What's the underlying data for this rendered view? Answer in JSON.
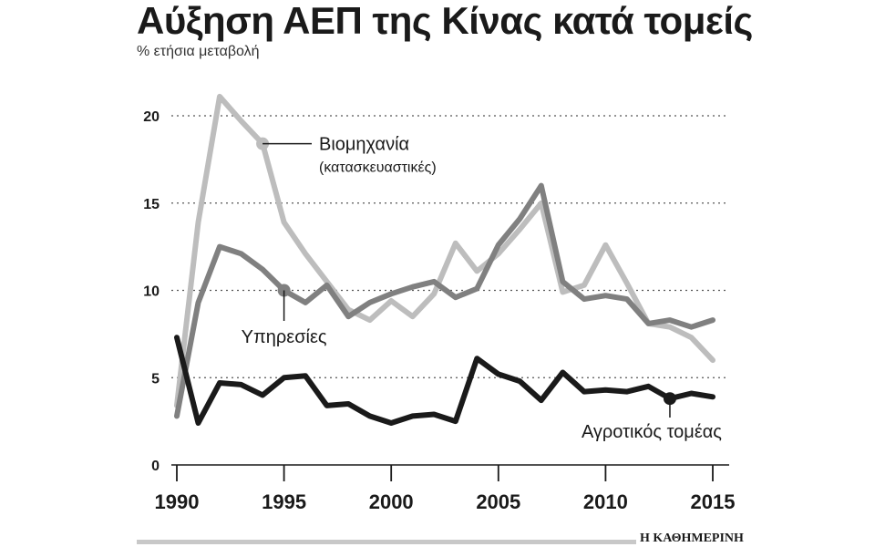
{
  "chart_data": {
    "type": "line",
    "title": "Αύξηση ΑΕΠ της Κίνας κατά τομείς",
    "subtitle": "% ετήσια μεταβολή",
    "x": [
      1990,
      1991,
      1992,
      1993,
      1994,
      1995,
      1996,
      1997,
      1998,
      1999,
      2000,
      2001,
      2002,
      2003,
      2004,
      2005,
      2006,
      2007,
      2008,
      2009,
      2010,
      2011,
      2012,
      2013,
      2014,
      2015
    ],
    "xticks": [
      "1990",
      "1995",
      "2000",
      "2005",
      "2010",
      "2015"
    ],
    "yticks": [
      "0",
      "5",
      "10",
      "15",
      "20"
    ],
    "ylim": [
      0,
      22
    ],
    "xlim": [
      1989.8,
      2015.5
    ],
    "grid": true,
    "series": [
      {
        "name": "Βιομηχανία",
        "name_sub": "(κατασκευαστικές)",
        "color": "#bdbdbd",
        "marker_year": 1994,
        "values": [
          3.4,
          13.9,
          21.1,
          19.7,
          18.4,
          13.9,
          12.1,
          10.5,
          8.9,
          8.3,
          9.4,
          8.5,
          9.8,
          12.7,
          11.1,
          12.1,
          13.5,
          15.0,
          9.9,
          10.3,
          12.6,
          10.4,
          8.1,
          7.9,
          7.3,
          6.0
        ]
      },
      {
        "name": "Υπηρεσίες",
        "color": "#808080",
        "marker_year": 1995,
        "values": [
          2.8,
          9.3,
          12.5,
          12.1,
          11.2,
          10.0,
          9.3,
          10.3,
          8.5,
          9.3,
          9.8,
          10.2,
          10.5,
          9.6,
          10.1,
          12.6,
          14.1,
          16.0,
          10.5,
          9.5,
          9.7,
          9.5,
          8.1,
          8.3,
          7.9,
          8.3
        ]
      },
      {
        "name": "Αγροτικός τομέας",
        "color": "#1a1a1a",
        "marker_year": 2013,
        "values": [
          7.3,
          2.4,
          4.7,
          4.6,
          4.0,
          5.0,
          5.1,
          3.4,
          3.5,
          2.8,
          2.4,
          2.8,
          2.9,
          2.5,
          6.1,
          5.2,
          4.8,
          3.7,
          5.3,
          4.2,
          4.3,
          4.2,
          4.5,
          3.8,
          4.1,
          3.9
        ]
      }
    ]
  },
  "footer": {
    "brand": "Η ΚΑΘΗΜΕΡΙΝΗ"
  }
}
